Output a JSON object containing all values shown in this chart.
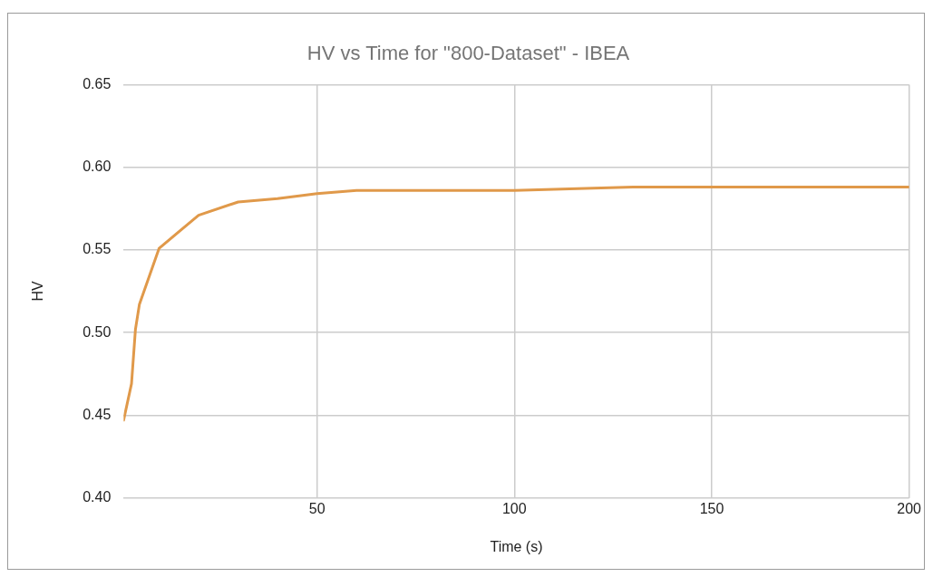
{
  "chart_data": {
    "type": "line",
    "title": "HV vs Time for \"800-Dataset\" - IBEA",
    "xlabel": "Time (s)",
    "ylabel": "HV",
    "x": [
      1,
      3,
      4,
      5,
      10,
      20,
      30,
      40,
      50,
      60,
      100,
      130,
      200
    ],
    "series": [
      {
        "color": "#e0994a",
        "values": [
          0.447,
          0.469,
          0.502,
          0.517,
          0.551,
          0.571,
          0.579,
          0.581,
          0.584,
          0.586,
          0.586,
          0.588,
          0.588
        ]
      }
    ],
    "xlim": [
      1,
      200
    ],
    "xticks": [
      50,
      100,
      150,
      200
    ],
    "ylim": [
      0.4,
      0.65
    ],
    "yticks": [
      {
        "value": 0.4,
        "label": "0.40"
      },
      {
        "value": 0.45,
        "label": "0.45"
      },
      {
        "value": 0.5,
        "label": "0.50"
      },
      {
        "value": 0.55,
        "label": "0.55"
      },
      {
        "value": 0.6,
        "label": "0.60"
      },
      {
        "value": 0.65,
        "label": "0.65"
      }
    ],
    "grid": true,
    "legend": false,
    "marker": "none",
    "line_style": "solid"
  }
}
